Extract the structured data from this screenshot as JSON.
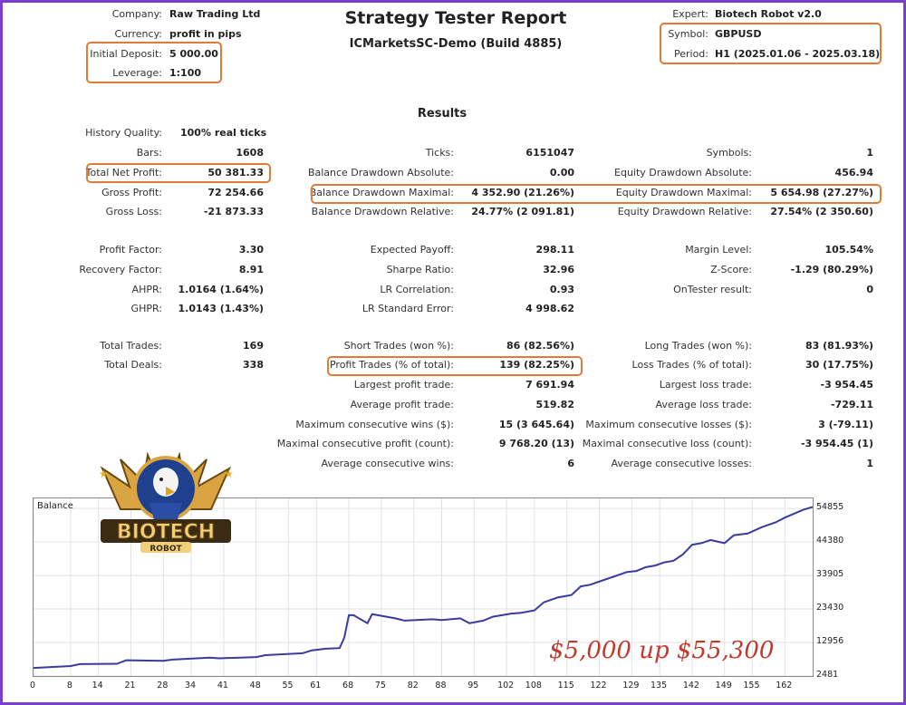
{
  "header": {
    "title": "Strategy Tester Report",
    "subtitle": "ICMarketsSC-Demo (Build 4885)",
    "company_label": "Company:",
    "company": "Raw Trading Ltd",
    "currency_label": "Currency:",
    "currency": "profit in pips",
    "deposit_label": "Initial Deposit:",
    "deposit": "5 000.00",
    "leverage_label": "Leverage:",
    "leverage": "1:100",
    "expert_label": "Expert:",
    "expert": "Biotech Robot v2.0",
    "symbol_label": "Symbol:",
    "symbol": "GBPUSD",
    "period_label": "Period:",
    "period": "H1 (2025.01.06 - 2025.03.18)"
  },
  "results_title": "Results",
  "col1": [
    {
      "label": "History Quality:",
      "value": "100% real ticks"
    },
    {
      "label": "Bars:",
      "value": "1608"
    },
    {
      "label": "Total Net Profit:",
      "value": "50 381.33"
    },
    {
      "label": "Gross Profit:",
      "value": "72 254.66"
    },
    {
      "label": "Gross Loss:",
      "value": "-21 873.33"
    },
    {
      "label": "Profit Factor:",
      "value": "3.30"
    },
    {
      "label": "Recovery Factor:",
      "value": "8.91"
    },
    {
      "label": "AHPR:",
      "value": "1.0164 (1.64%)"
    },
    {
      "label": "GHPR:",
      "value": "1.0143 (1.43%)"
    },
    {
      "label": "Total Trades:",
      "value": "169"
    },
    {
      "label": "Total Deals:",
      "value": "338"
    }
  ],
  "col2": [
    {
      "label": "Ticks:",
      "value": "6151047"
    },
    {
      "label": "Balance Drawdown Absolute:",
      "value": "0.00"
    },
    {
      "label": "Balance Drawdown Maximal:",
      "value": "4 352.90 (21.26%)"
    },
    {
      "label": "Balance Drawdown Relative:",
      "value": "24.77% (2 091.81)"
    },
    {
      "label": "Expected Payoff:",
      "value": "298.11"
    },
    {
      "label": "Sharpe Ratio:",
      "value": "32.96"
    },
    {
      "label": "LR Correlation:",
      "value": "0.93"
    },
    {
      "label": "LR Standard Error:",
      "value": "4 998.62"
    },
    {
      "label": "Short Trades (won %):",
      "value": "86 (82.56%)"
    },
    {
      "label": "Profit Trades (% of total):",
      "value": "139 (82.25%)"
    },
    {
      "label": "Largest profit trade:",
      "value": "7 691.94"
    },
    {
      "label": "Average profit trade:",
      "value": "519.82"
    },
    {
      "label": "Maximum consecutive wins ($):",
      "value": "15 (3 645.64)"
    },
    {
      "label": "Maximal consecutive profit (count):",
      "value": "9 768.20 (13)"
    },
    {
      "label": "Average consecutive wins:",
      "value": "6"
    }
  ],
  "col3": [
    {
      "label": "Symbols:",
      "value": "1"
    },
    {
      "label": "Equity Drawdown Absolute:",
      "value": "456.94"
    },
    {
      "label": "Equity Drawdown Maximal:",
      "value": "5 654.98 (27.27%)"
    },
    {
      "label": "Equity Drawdown Relative:",
      "value": "27.54% (2 350.60)"
    },
    {
      "label": "Margin Level:",
      "value": "105.54%"
    },
    {
      "label": "Z-Score:",
      "value": "-1.29 (80.29%)"
    },
    {
      "label": "OnTester result:",
      "value": "0"
    },
    {
      "label": "Long Trades (won %):",
      "value": "83 (81.93%)"
    },
    {
      "label": "Loss Trades (% of total):",
      "value": "30 (17.75%)"
    },
    {
      "label": "Largest loss trade:",
      "value": "-3 954.45"
    },
    {
      "label": "Average loss trade:",
      "value": "-729.11"
    },
    {
      "label": "Maximum consecutive losses ($):",
      "value": "3 (-79.11)"
    },
    {
      "label": "Maximal consecutive loss (count):",
      "value": "-3 954.45 (1)"
    },
    {
      "label": "Average consecutive losses:",
      "value": "1"
    }
  ],
  "logo": {
    "text": "BIOTECH",
    "sub": "ROBOT"
  },
  "annotation": "$5,000 up $55,300",
  "colors": {
    "frame": "#7b3fd0",
    "highlight": "#e07b39",
    "line": "#3a3aa0",
    "annotation": "#c0392b"
  },
  "chart_data": {
    "type": "line",
    "title": "Balance",
    "xlabel": "",
    "ylabel": "",
    "x_ticks": [
      "0",
      "8",
      "14",
      "21",
      "28",
      "34",
      "41",
      "48",
      "55",
      "61",
      "68",
      "75",
      "82",
      "88",
      "95",
      "102",
      "108",
      "115",
      "122",
      "129",
      "135",
      "142",
      "149",
      "155",
      "162"
    ],
    "y_ticks": [
      "2481",
      "12956",
      "23430",
      "33905",
      "44380",
      "54855"
    ],
    "xlim": [
      0,
      168
    ],
    "ylim": [
      2481,
      58000
    ],
    "series": [
      {
        "x": [
          0,
          8,
          10,
          18,
          20,
          28,
          30,
          38,
          40,
          48,
          50,
          58,
          60,
          63,
          66,
          67,
          68,
          69,
          72,
          73,
          78,
          80,
          86,
          88,
          92,
          94,
          97,
          99,
          103,
          105,
          108,
          110,
          113,
          116,
          118,
          120,
          123,
          125,
          128,
          130,
          132,
          134,
          136,
          138,
          140,
          142,
          144,
          146,
          149,
          151,
          154,
          157,
          160,
          162,
          166,
          168
        ],
        "y": [
          5000,
          5600,
          6200,
          6300,
          7400,
          7200,
          7600,
          8200,
          8000,
          8400,
          9000,
          9600,
          10500,
          11000,
          11200,
          14500,
          21500,
          21500,
          19000,
          21800,
          20500,
          19800,
          20200,
          20000,
          20500,
          19000,
          19800,
          21000,
          22000,
          22200,
          23000,
          25500,
          27000,
          27800,
          30500,
          31000,
          32500,
          33500,
          35000,
          35300,
          36500,
          37000,
          38000,
          38500,
          40500,
          43500,
          44000,
          45000,
          44000,
          46500,
          47000,
          49000,
          50500,
          52000,
          54500,
          55300
        ]
      }
    ]
  }
}
